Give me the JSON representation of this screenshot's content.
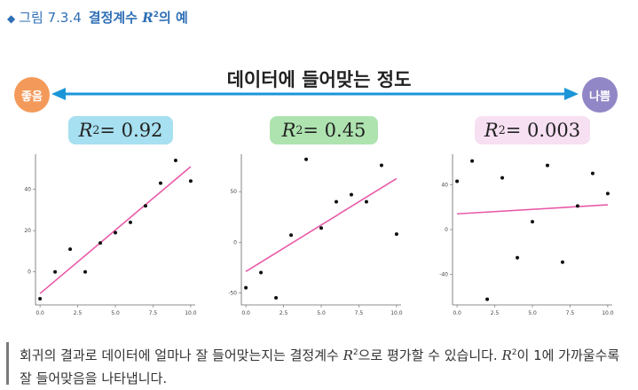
{
  "figure": {
    "marker": "◆",
    "number": "그림 7.3.4",
    "title_text": "결정계수 ",
    "title_symbol": "R",
    "title_exp": "2",
    "title_tail": "의 예"
  },
  "scale": {
    "title": "데이터에 들어맞는 정도",
    "good_label": "좋음",
    "bad_label": "나쁨",
    "good_color": "#f39a5a",
    "bad_color": "#9187c7",
    "arrow_color": "#1a96d8"
  },
  "panels": [
    {
      "symbol": "R",
      "exp": "2",
      "value": " = 0.92",
      "color": "#a7e0f0"
    },
    {
      "symbol": "R",
      "exp": "2",
      "value": " = 0.45",
      "color": "#aee3b0"
    },
    {
      "symbol": "R",
      "exp": "2",
      "value": " = 0.003",
      "color": "#f6e0f2"
    }
  ],
  "chart_data": [
    {
      "type": "scatter",
      "x_ticks": [
        "0.0",
        "2.5",
        "5.0",
        "7.5",
        "10.0"
      ],
      "y_ticks": [
        "0",
        "20",
        "40"
      ],
      "xlim": [
        -0.3,
        10.3
      ],
      "ylim": [
        -16,
        57
      ],
      "points": [
        [
          0,
          -13
        ],
        [
          1,
          0
        ],
        [
          2,
          11
        ],
        [
          3,
          0
        ],
        [
          4,
          14
        ],
        [
          5,
          19
        ],
        [
          6,
          24
        ],
        [
          7,
          32
        ],
        [
          8,
          43
        ],
        [
          9,
          54
        ],
        [
          10,
          44
        ]
      ],
      "fit_line": [
        [
          0,
          -10.5
        ],
        [
          10,
          51
        ]
      ],
      "line_color": "#e85aa8"
    },
    {
      "type": "scatter",
      "x_ticks": [
        "0.0",
        "2.5",
        "5.0",
        "7.5",
        "10.0"
      ],
      "y_ticks": [
        "50",
        "0",
        "-50"
      ],
      "xlim": [
        -0.3,
        10.3
      ],
      "ylim": [
        -62,
        87
      ],
      "points": [
        [
          0,
          -45
        ],
        [
          1,
          -30
        ],
        [
          2,
          -55
        ],
        [
          3,
          7
        ],
        [
          4,
          82
        ],
        [
          5,
          14
        ],
        [
          6,
          40
        ],
        [
          7,
          47
        ],
        [
          8,
          40
        ],
        [
          9,
          76
        ],
        [
          10,
          8
        ]
      ],
      "fit_line": [
        [
          0,
          -29
        ],
        [
          10,
          63
        ]
      ],
      "line_color": "#e85aa8"
    },
    {
      "type": "scatter",
      "x_ticks": [
        "0.0",
        "2.5",
        "5.0",
        "7.5",
        "10.0"
      ],
      "y_ticks": [
        "40",
        "0",
        "-40"
      ],
      "xlim": [
        -0.3,
        10.3
      ],
      "ylim": [
        -67,
        67
      ],
      "points": [
        [
          0,
          43
        ],
        [
          1,
          61
        ],
        [
          2,
          -62
        ],
        [
          3,
          46
        ],
        [
          4,
          -25
        ],
        [
          5,
          7
        ],
        [
          6,
          57
        ],
        [
          7,
          -29
        ],
        [
          8,
          21
        ],
        [
          9,
          50
        ],
        [
          10,
          32
        ]
      ],
      "fit_line": [
        [
          0,
          14
        ],
        [
          10,
          22
        ]
      ],
      "line_color": "#e85aa8"
    }
  ],
  "caption": {
    "part1": "회귀의 결과로 데이터에 얼마나 잘 들어맞는지는 결정계수 ",
    "sym1": "R",
    "exp1": "2",
    "part2": "으로 평가할 수 있습니다. ",
    "sym2": "R",
    "exp2": "2",
    "part3": "이 1에 가까울수록 잘 들어맞음을 나타냅니다."
  }
}
